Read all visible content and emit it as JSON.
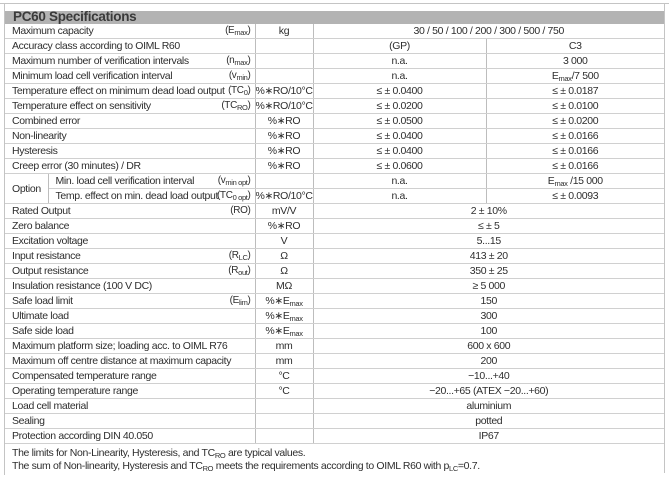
{
  "title": "PC60 Specifications",
  "option_label": "Option",
  "rows": [
    {
      "label": "Maximum capacity",
      "sym": [
        {
          "t": "(E"
        },
        {
          "t": "max",
          "sub": true
        },
        {
          "t": ")"
        }
      ],
      "unit": [
        {
          "t": "kg"
        }
      ],
      "span": [
        {
          "t": "30 / 50 / 100 / 200 / 300 / 500 / 750"
        }
      ]
    },
    {
      "label": "Accuracy class according to OIML R60",
      "sym": [],
      "unit": [],
      "v1": [
        {
          "t": "(GP)"
        }
      ],
      "v2": [
        {
          "t": "C3"
        }
      ]
    },
    {
      "label": "Maximum number of verification intervals",
      "sym": [
        {
          "t": "(n"
        },
        {
          "t": "max",
          "sub": true
        },
        {
          "t": ")"
        }
      ],
      "unit": [],
      "v1": [
        {
          "t": "n.a."
        }
      ],
      "v2": [
        {
          "t": "3 000"
        }
      ]
    },
    {
      "label": "Minimum load cell verification interval",
      "sym": [
        {
          "t": "(v"
        },
        {
          "t": "min",
          "sub": true
        },
        {
          "t": ")"
        }
      ],
      "unit": [],
      "v1": [
        {
          "t": "n.a."
        }
      ],
      "v2": [
        {
          "t": "E"
        },
        {
          "t": "max",
          "sub": true
        },
        {
          "t": "/7 500"
        }
      ]
    },
    {
      "label": "Temperature effect on minimum dead load output",
      "sym": [
        {
          "t": "(TC"
        },
        {
          "t": "0",
          "sub": true
        },
        {
          "t": ")"
        }
      ],
      "unit": [
        {
          "t": "%∗RO/10°C"
        }
      ],
      "v1": [
        {
          "t": "≤ ± 0.0400"
        }
      ],
      "v2": [
        {
          "t": "≤ ± 0.0187"
        }
      ]
    },
    {
      "label": "Temperature effect on sensitivity",
      "sym": [
        {
          "t": "(TC"
        },
        {
          "t": "RO",
          "sub": true
        },
        {
          "t": ")"
        }
      ],
      "unit": [
        {
          "t": "%∗RO/10°C"
        }
      ],
      "v1": [
        {
          "t": "≤ ± 0.0200"
        }
      ],
      "v2": [
        {
          "t": "≤ ± 0.0100"
        }
      ]
    },
    {
      "label": "Combined error",
      "sym": [],
      "unit": [
        {
          "t": "%∗RO"
        }
      ],
      "v1": [
        {
          "t": "≤ ± 0.0500"
        }
      ],
      "v2": [
        {
          "t": "≤ ± 0.0200"
        }
      ]
    },
    {
      "label": "Non-linearity",
      "sym": [],
      "unit": [
        {
          "t": "%∗RO"
        }
      ],
      "v1": [
        {
          "t": "≤ ± 0.0400"
        }
      ],
      "v2": [
        {
          "t": "≤ ± 0.0166"
        }
      ]
    },
    {
      "label": "Hysteresis",
      "sym": [],
      "unit": [
        {
          "t": "%∗RO"
        }
      ],
      "v1": [
        {
          "t": "≤ ± 0.0400"
        }
      ],
      "v2": [
        {
          "t": "≤ ± 0.0166"
        }
      ]
    },
    {
      "label": "Creep error (30 minutes) / DR",
      "sym": [],
      "unit": [
        {
          "t": "%∗RO"
        }
      ],
      "v1": [
        {
          "t": "≤ ± 0.0600"
        }
      ],
      "v2": [
        {
          "t": "≤ ± 0.0166"
        }
      ]
    },
    {
      "option": true,
      "label": "Min. load cell verification interval",
      "sym": [
        {
          "t": "(v"
        },
        {
          "t": "min opt",
          "sub": true
        },
        {
          "t": ")"
        }
      ],
      "unit": [],
      "v1": [
        {
          "t": "n.a."
        }
      ],
      "v2": [
        {
          "t": "E"
        },
        {
          "t": "max",
          "sub": true
        },
        {
          "t": " /15 000"
        }
      ]
    },
    {
      "option": true,
      "label": "Temp. effect on min. dead load output",
      "sym": [
        {
          "t": "(TC"
        },
        {
          "t": "0 opt",
          "sub": true
        },
        {
          "t": ")"
        }
      ],
      "unit": [
        {
          "t": "%∗RO/10°C"
        }
      ],
      "v1": [
        {
          "t": "n.a."
        }
      ],
      "v2": [
        {
          "t": "≤ ± 0.0093"
        }
      ]
    },
    {
      "label": "Rated Output",
      "sym": [
        {
          "t": "(RO)"
        }
      ],
      "unit": [
        {
          "t": "mV/V"
        }
      ],
      "span": [
        {
          "t": "2 ± 10%"
        }
      ]
    },
    {
      "label": "Zero balance",
      "sym": [],
      "unit": [
        {
          "t": "%∗RO"
        }
      ],
      "span": [
        {
          "t": "≤ ± 5"
        }
      ]
    },
    {
      "label": "Excitation voltage",
      "sym": [],
      "unit": [
        {
          "t": "V"
        }
      ],
      "span": [
        {
          "t": "5...15"
        }
      ]
    },
    {
      "label": "Input resistance",
      "sym": [
        {
          "t": "(R"
        },
        {
          "t": "LC",
          "sub": true
        },
        {
          "t": ")"
        }
      ],
      "unit": [
        {
          "t": "Ω"
        }
      ],
      "span": [
        {
          "t": "413 ± 20"
        }
      ]
    },
    {
      "label": "Output resistance",
      "sym": [
        {
          "t": "(R"
        },
        {
          "t": "out",
          "sub": true
        },
        {
          "t": ")"
        }
      ],
      "unit": [
        {
          "t": "Ω"
        }
      ],
      "span": [
        {
          "t": "350 ± 25"
        }
      ]
    },
    {
      "label": "Insulation resistance (100 V DC)",
      "sym": [],
      "unit": [
        {
          "t": "MΩ"
        }
      ],
      "span": [
        {
          "t": "≥ 5 000"
        }
      ]
    },
    {
      "label": "Safe load limit",
      "sym": [
        {
          "t": "(E"
        },
        {
          "t": "lim",
          "sub": true
        },
        {
          "t": ")"
        }
      ],
      "unit": [
        {
          "t": "%∗E"
        },
        {
          "t": "max",
          "sub": true
        }
      ],
      "span": [
        {
          "t": "150"
        }
      ]
    },
    {
      "label": "Ultimate load",
      "sym": [],
      "unit": [
        {
          "t": "%∗E"
        },
        {
          "t": "max",
          "sub": true
        }
      ],
      "span": [
        {
          "t": "300"
        }
      ]
    },
    {
      "label": "Safe side load",
      "sym": [],
      "unit": [
        {
          "t": "%∗E"
        },
        {
          "t": "max",
          "sub": true
        }
      ],
      "span": [
        {
          "t": "100"
        }
      ]
    },
    {
      "label": "Maximum platform size; loading acc. to OIML R76",
      "sym": [],
      "unit": [
        {
          "t": "mm"
        }
      ],
      "span": [
        {
          "t": "600 x 600"
        }
      ]
    },
    {
      "label": "Maximum off centre distance at maximum capacity",
      "sym": [],
      "unit": [
        {
          "t": "mm"
        }
      ],
      "span": [
        {
          "t": "200"
        }
      ]
    },
    {
      "label": "Compensated temperature range",
      "sym": [],
      "unit": [
        {
          "t": "°C"
        }
      ],
      "span": [
        {
          "t": "−10...+40"
        }
      ]
    },
    {
      "label": "Operating temperature range",
      "sym": [],
      "unit": [
        {
          "t": "°C"
        }
      ],
      "span": [
        {
          "t": "−20...+65 (ATEX −20...+60)"
        }
      ]
    },
    {
      "label": "Load cell material",
      "sym": [],
      "unit": [],
      "span": [
        {
          "t": "aluminium"
        }
      ]
    },
    {
      "label": "Sealing",
      "sym": [],
      "unit": [],
      "span": [
        {
          "t": "potted"
        }
      ]
    },
    {
      "label": "Protection according DIN 40.050",
      "sym": [],
      "unit": [],
      "span": [
        {
          "t": "IP67"
        }
      ]
    }
  ],
  "notes": [
    [
      {
        "t": "The limits for Non-Linearity, Hysteresis, and TC"
      },
      {
        "t": "RO",
        "sub": true
      },
      {
        "t": " are typical values."
      }
    ],
    [
      {
        "t": "The sum of Non-linearity, Hysteresis and TC"
      },
      {
        "t": "RO",
        "sub": true
      },
      {
        "t": " meets the requirements according to OIML R60 with p"
      },
      {
        "t": "LC",
        "sub": true
      },
      {
        "t": "=0.7."
      }
    ]
  ]
}
